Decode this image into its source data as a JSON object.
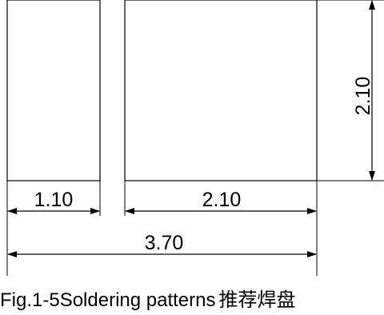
{
  "dimensions": {
    "pad_width_small": "1.10",
    "pad_width_large": "2.10",
    "pad_height": "2.10",
    "overall_width": "3.70"
  },
  "caption": {
    "text": "Fig.1-5Soldering patterns",
    "text_cn": "推荐焊盘"
  },
  "colors": {
    "line": "#000000",
    "background": "#ffffff"
  }
}
